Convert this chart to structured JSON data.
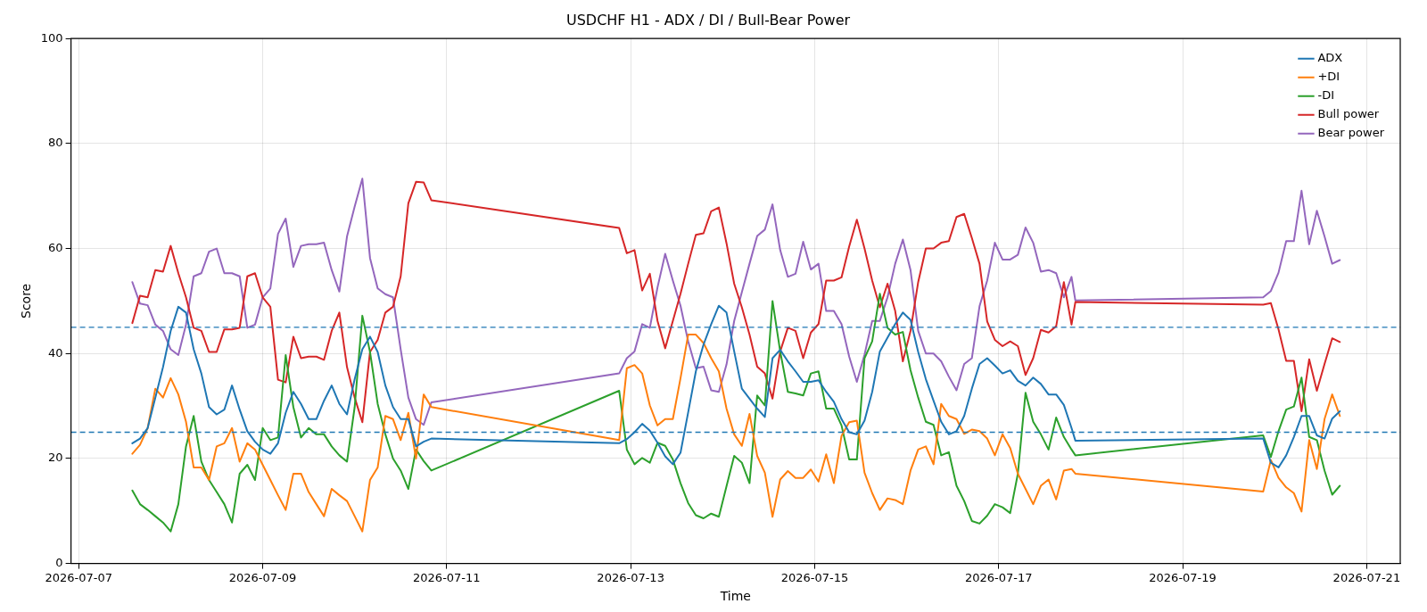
{
  "chart_data": {
    "type": "line",
    "title": "USDCHF H1 - ADX / DI / Bull-Bear Power",
    "xlabel": "Time",
    "ylabel": "Score",
    "x": [
      "2026-07-07T14:00",
      "2026-07-07T16:00",
      "2026-07-07T18:00",
      "2026-07-07T20:00",
      "2026-07-07T22:00",
      "2026-07-08T00:00",
      "2026-07-08T02:00",
      "2026-07-08T04:00",
      "2026-07-08T06:00",
      "2026-07-08T08:00",
      "2026-07-08T10:00",
      "2026-07-08T12:00",
      "2026-07-08T14:00",
      "2026-07-08T16:00",
      "2026-07-08T18:00",
      "2026-07-08T20:00",
      "2026-07-08T22:00",
      "2026-07-09T00:00",
      "2026-07-09T02:00",
      "2026-07-09T04:00",
      "2026-07-09T06:00",
      "2026-07-09T08:00",
      "2026-07-09T10:00",
      "2026-07-09T12:00",
      "2026-07-09T14:00",
      "2026-07-09T16:00",
      "2026-07-09T18:00",
      "2026-07-09T20:00",
      "2026-07-09T22:00",
      "2026-07-10T00:00",
      "2026-07-10T02:00",
      "2026-07-10T04:00",
      "2026-07-10T06:00",
      "2026-07-10T08:00",
      "2026-07-10T10:00",
      "2026-07-10T12:00",
      "2026-07-10T14:00",
      "2026-07-10T16:00",
      "2026-07-10T18:00",
      "2026-07-10T20:00",
      "2026-07-12T21:00",
      "2026-07-12T23:00",
      "2026-07-13T01:00",
      "2026-07-13T03:00",
      "2026-07-13T05:00",
      "2026-07-13T07:00",
      "2026-07-13T09:00",
      "2026-07-13T11:00",
      "2026-07-13T13:00",
      "2026-07-13T15:00",
      "2026-07-13T17:00",
      "2026-07-13T19:00",
      "2026-07-13T21:00",
      "2026-07-13T23:00",
      "2026-07-14T01:00",
      "2026-07-14T03:00",
      "2026-07-14T05:00",
      "2026-07-14T07:00",
      "2026-07-14T09:00",
      "2026-07-14T11:00",
      "2026-07-14T13:00",
      "2026-07-14T15:00",
      "2026-07-14T17:00",
      "2026-07-14T19:00",
      "2026-07-14T21:00",
      "2026-07-14T23:00",
      "2026-07-15T01:00",
      "2026-07-15T03:00",
      "2026-07-15T05:00",
      "2026-07-15T07:00",
      "2026-07-15T09:00",
      "2026-07-15T11:00",
      "2026-07-15T13:00",
      "2026-07-15T15:00",
      "2026-07-15T17:00",
      "2026-07-15T19:00",
      "2026-07-15T21:00",
      "2026-07-15T23:00",
      "2026-07-16T01:00",
      "2026-07-16T03:00",
      "2026-07-16T05:00",
      "2026-07-16T07:00",
      "2026-07-16T09:00",
      "2026-07-16T11:00",
      "2026-07-16T13:00",
      "2026-07-16T15:00",
      "2026-07-16T17:00",
      "2026-07-16T19:00",
      "2026-07-16T21:00",
      "2026-07-16T23:00",
      "2026-07-17T01:00",
      "2026-07-17T03:00",
      "2026-07-17T05:00",
      "2026-07-17T07:00",
      "2026-07-17T09:00",
      "2026-07-17T11:00",
      "2026-07-17T13:00",
      "2026-07-17T15:00",
      "2026-07-17T17:00",
      "2026-07-17T19:00",
      "2026-07-17T20:00",
      "2026-07-19T21:00",
      "2026-07-19T23:00",
      "2026-07-20T01:00",
      "2026-07-20T03:00",
      "2026-07-20T05:00",
      "2026-07-20T07:00",
      "2026-07-20T09:00",
      "2026-07-20T11:00",
      "2026-07-20T13:00",
      "2026-07-20T15:00",
      "2026-07-20T17:00"
    ],
    "series": [
      {
        "name": "ADX",
        "color": "#1f77b4",
        "values": [
          22.9,
          23.8,
          25.8,
          31.6,
          37.4,
          44.3,
          48.9,
          47.8,
          40.8,
          36.2,
          29.8,
          28.4,
          29.3,
          33.9,
          29.3,
          25.2,
          23.2,
          21.7,
          20.9,
          22.9,
          28.7,
          32.7,
          30.4,
          27.5,
          27.5,
          31,
          33.9,
          30.4,
          28.4,
          35.1,
          40.8,
          43.2,
          40.3,
          33.9,
          29.8,
          27.5,
          27.5,
          22.3,
          23.2,
          23.8,
          22.9,
          23.7,
          25,
          26.6,
          25.3,
          23,
          20.4,
          18.9,
          21.1,
          28.8,
          36.6,
          41.7,
          45.6,
          49.1,
          47.8,
          40.4,
          33.3,
          31.4,
          29.5,
          27.9,
          39.1,
          40.7,
          38.5,
          36.6,
          34.6,
          34.6,
          34.9,
          32.7,
          30.8,
          27.5,
          25,
          24.6,
          27.2,
          32.7,
          40.4,
          43,
          45.6,
          47.8,
          46.4,
          40.3,
          35.1,
          31,
          27,
          24.6,
          25.2,
          28.1,
          33.3,
          38,
          39.1,
          37.7,
          36.2,
          36.8,
          34.8,
          33.9,
          35.4,
          34.2,
          32.2,
          32.2,
          30.2,
          25.8,
          23.4,
          23.8,
          19.2,
          18.3,
          20.6,
          24.1,
          28.1,
          28.1,
          24.4,
          23.8,
          27.6,
          29
        ]
      },
      {
        "name": "+DI",
        "color": "#ff7f0e",
        "values": [
          20.9,
          22.6,
          25.8,
          33.3,
          31.6,
          35.3,
          32.2,
          27,
          18.3,
          18.3,
          15.9,
          22.3,
          22.9,
          25.8,
          19.4,
          22.9,
          21.7,
          18.8,
          15.9,
          13,
          10.2,
          17.1,
          17.1,
          13.6,
          11.3,
          9,
          14.2,
          13,
          11.9,
          9,
          6.1,
          15.9,
          18.3,
          28.1,
          27.5,
          23.5,
          28.7,
          20,
          32.2,
          29.8,
          23.5,
          37.2,
          37.8,
          36.2,
          30.1,
          26.3,
          27.5,
          27.5,
          35.3,
          43.6,
          43.6,
          42,
          39.1,
          36.6,
          29.5,
          24.6,
          22.4,
          28.5,
          20.5,
          17.3,
          8.9,
          16,
          17.6,
          16.3,
          16.3,
          17.9,
          15.6,
          20.8,
          15.3,
          24.3,
          26.9,
          27.2,
          17.3,
          13.4,
          10.2,
          12.4,
          12.1,
          11.3,
          17.7,
          21.7,
          22.3,
          18.9,
          30.4,
          28.1,
          27.5,
          24.7,
          25.5,
          25.2,
          23.8,
          20.6,
          24.6,
          22,
          17.1,
          14.2,
          11.3,
          14.8,
          16,
          12.2,
          17.7,
          18,
          17.1,
          13.7,
          19.7,
          16.3,
          14.5,
          13.4,
          9.9,
          23.5,
          18,
          27.5,
          32.2,
          28.1
        ]
      },
      {
        "name": "-DI",
        "color": "#2ca02c",
        "values": [
          13.9,
          11.3,
          10.2,
          9,
          7.8,
          6.1,
          11.3,
          22.3,
          28.1,
          19.4,
          15.9,
          13.6,
          11.3,
          7.8,
          17.1,
          18.8,
          15.9,
          25.8,
          23.5,
          24,
          39.7,
          29.8,
          24,
          25.8,
          24.6,
          24.6,
          22.3,
          20.6,
          19.4,
          29.8,
          47.2,
          40.3,
          30.4,
          24.6,
          20,
          17.7,
          14.2,
          21.7,
          19.5,
          17.7,
          32.9,
          21.7,
          18.9,
          20.1,
          19.2,
          23,
          22.4,
          19.8,
          15.3,
          11.5,
          9.2,
          8.6,
          9.5,
          8.9,
          14.7,
          20.5,
          19.2,
          15.3,
          32,
          30.1,
          50,
          40.4,
          32.7,
          32.4,
          32,
          36.2,
          36.6,
          29.5,
          29.5,
          26.3,
          19.8,
          19.8,
          39.1,
          42.3,
          51.4,
          44.9,
          43.6,
          44.1,
          36.8,
          31.6,
          27,
          26.4,
          20.6,
          21.2,
          14.8,
          11.9,
          8.1,
          7.6,
          9.1,
          11.3,
          10.7,
          9.6,
          17.1,
          32.5,
          27,
          24.6,
          21.7,
          27.8,
          24.1,
          21.7,
          20.6,
          24.4,
          20.3,
          25.2,
          29.3,
          29.9,
          35.4,
          24.1,
          23.5,
          17.7,
          13.1,
          14.8
        ]
      },
      {
        "name": "Bull power",
        "color": "#d62728",
        "values": [
          45.8,
          51,
          50.7,
          55.9,
          55.6,
          60.5,
          55.3,
          50.7,
          44.9,
          44.3,
          40.3,
          40.3,
          44.6,
          44.6,
          44.9,
          54.7,
          55.3,
          50.7,
          48.9,
          35,
          34.5,
          43.2,
          39.1,
          39.4,
          39.4,
          38.8,
          44.3,
          47.8,
          37.4,
          31.6,
          26.9,
          40.3,
          42.6,
          47.8,
          48.9,
          54.7,
          68.6,
          72.7,
          72.6,
          69.2,
          63.9,
          59.1,
          59.7,
          52,
          55.2,
          46.2,
          41,
          46.2,
          51.4,
          57.1,
          62.6,
          62.9,
          67.1,
          67.8,
          61,
          53.3,
          48.8,
          43.6,
          37.5,
          36.2,
          31.4,
          40.4,
          44.9,
          44.3,
          39.1,
          44,
          45.6,
          53.9,
          53.9,
          54.5,
          60.4,
          65.5,
          60,
          53.9,
          48.8,
          53.3,
          48.1,
          38.5,
          44.3,
          53.6,
          60,
          60,
          61.1,
          61.4,
          66,
          66.6,
          62,
          57.1,
          46.1,
          42.6,
          41.4,
          42.3,
          41.4,
          35.9,
          39.1,
          44.5,
          44,
          45.2,
          53.6,
          45.5,
          49.8,
          49.3,
          49.6,
          44.6,
          38.6,
          38.6,
          29,
          38.9,
          32.9,
          38,
          42.9,
          42.2
        ]
      },
      {
        "name": "Bear power",
        "color": "#9467bd",
        "values": [
          53.6,
          49.5,
          49.2,
          45.5,
          44.3,
          40.8,
          39.7,
          45.5,
          54.7,
          55.3,
          59.4,
          60,
          55.3,
          55.3,
          54.7,
          44.9,
          45.5,
          50.7,
          52.4,
          62.8,
          65.7,
          56.5,
          60.5,
          60.8,
          60.8,
          61.1,
          55.9,
          51.8,
          62.3,
          68,
          73.3,
          58.2,
          52.4,
          51.3,
          50.7,
          40.8,
          31.6,
          27.5,
          26.4,
          30.7,
          36.2,
          39.1,
          40.4,
          45.6,
          44.9,
          52.6,
          59,
          53.9,
          49.1,
          42.3,
          37.2,
          37.5,
          33,
          32.7,
          37.9,
          46.2,
          51.7,
          57.1,
          62.4,
          63.6,
          68.4,
          59.7,
          54.6,
          55.2,
          61.3,
          56,
          57.1,
          48.1,
          48.1,
          45.6,
          39.4,
          34.6,
          39.8,
          46.2,
          46.2,
          50.7,
          57.1,
          61.7,
          55.9,
          44.3,
          40,
          40,
          38.5,
          35.6,
          33,
          38,
          39.1,
          49,
          53.9,
          61.1,
          57.9,
          57.9,
          58.8,
          64,
          61.1,
          55.6,
          55.9,
          55.3,
          50.7,
          54.6,
          50.1,
          50.7,
          51.9,
          55.4,
          61.4,
          61.4,
          71,
          60.8,
          67.2,
          62.3,
          57.1,
          57.8
        ]
      }
    ],
    "ref_lines": [
      {
        "axis": "y",
        "value": 45,
        "color": "#1f77b4",
        "line_style": "dashed"
      },
      {
        "axis": "y",
        "value": 25,
        "color": "#1f77b4",
        "line_style": "dashed"
      }
    ],
    "xlim": [
      "2026-07-06T22:00",
      "2026-07-21T08:45"
    ],
    "xticks": [
      "2026-07-07",
      "2026-07-09",
      "2026-07-11",
      "2026-07-13",
      "2026-07-15",
      "2026-07-17",
      "2026-07-19",
      "2026-07-21"
    ],
    "ylim": [
      0,
      100
    ],
    "yticks": [
      0,
      20,
      40,
      60,
      80,
      100
    ],
    "grid": true,
    "legend": "top right",
    "marker": "none",
    "line_style": "solid"
  }
}
